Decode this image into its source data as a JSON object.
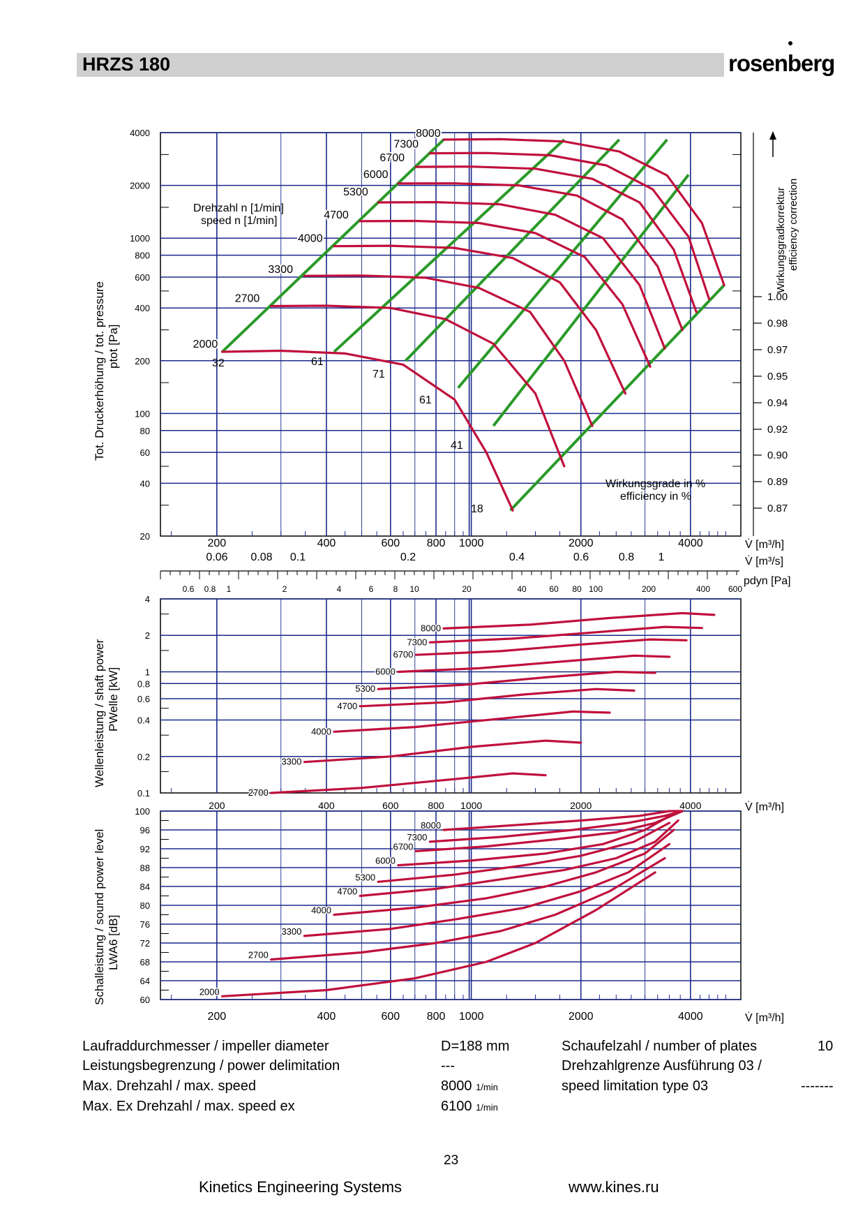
{
  "header": {
    "title": "HRZS 180",
    "brand": "rosenberg"
  },
  "colors": {
    "curve": "#c0103c",
    "efficiency": "#2a9a28",
    "grid": "#1a2a8a",
    "header_bar": "#cfcfcf"
  },
  "axes": {
    "flow_m3h_label": "V̇ [m³/h]",
    "flow_m3h_ticks": [
      "200",
      "400",
      "600",
      "800",
      "1000",
      "2000",
      "4000"
    ],
    "flow_m3s_label": "V̇ [m³/s]",
    "flow_m3s_ticks": [
      "0.06",
      "0.08",
      "0.1",
      "0.2",
      "0.4",
      "0.6",
      "0.8",
      "1"
    ],
    "pdyn_label": "pdyn [Pa]",
    "pdyn_ticks": [
      "0.6",
      "0.8",
      "1",
      "2",
      "4",
      "6",
      "8",
      "10",
      "20",
      "40",
      "60",
      "80",
      "100",
      "200",
      "400",
      "600"
    ],
    "pressure_label": "Tot. Druckerhöhung / tot. pressure",
    "pressure_unit": "ptot [Pa]",
    "pressure_ticks": [
      "4000",
      "2000",
      "1000",
      "800",
      "600",
      "400",
      "200",
      "100",
      "80",
      "60",
      "40",
      "20"
    ],
    "correction_label_de": "Wirkungsgradkorrektur",
    "correction_label_en": "efficiency correction",
    "correction_ticks": [
      "1.00",
      "0.98",
      "0.97",
      "0.95",
      "0.94",
      "0.92",
      "0.90",
      "0.89",
      "0.87"
    ],
    "power_label": "Wellenleistung / shaft power",
    "power_unit": "PWelle [kW]",
    "power_ticks": [
      "4",
      "2",
      "1",
      "0.8",
      "0.6",
      "0.4",
      "0.2",
      "0.1"
    ],
    "sound_label": "Schalleistung / sound power level",
    "sound_unit": "LWA6 [dB]",
    "sound_ticks": [
      "100",
      "96",
      "92",
      "88",
      "84",
      "80",
      "76",
      "72",
      "68",
      "64",
      "60"
    ]
  },
  "annotations": {
    "speed_de": "Drehzahl n [1/min]",
    "speed_en": "speed n [1/min]",
    "efficiency_de": "Wirkungsgrade in %",
    "efficiency_en": "efficiency in %"
  },
  "chart_data": [
    {
      "type": "line",
      "title": "",
      "xlabel": "V̇ [m³/h]",
      "ylabel": "ptot [Pa]",
      "xscale": "log",
      "yscale": "log",
      "xlim": [
        140,
        5500
      ],
      "ylim": [
        20,
        4000
      ],
      "grid": true,
      "series": [
        {
          "name": "2000",
          "x": [
            207,
            300,
            450,
            650,
            900,
            1100,
            1300
          ],
          "y": [
            225,
            228,
            220,
            190,
            120,
            60,
            28
          ]
        },
        {
          "name": "2700",
          "x": [
            282,
            400,
            600,
            850,
            1150,
            1500,
            1800
          ],
          "y": [
            410,
            412,
            400,
            345,
            250,
            130,
            50
          ]
        },
        {
          "name": "3300",
          "x": [
            348,
            500,
            750,
            1050,
            1450,
            1800,
            2150
          ],
          "y": [
            610,
            612,
            595,
            520,
            380,
            200,
            85
          ]
        },
        {
          "name": "4000",
          "x": [
            420,
            600,
            900,
            1300,
            1750,
            2200,
            2650
          ],
          "y": [
            900,
            905,
            880,
            770,
            560,
            300,
            130
          ]
        },
        {
          "name": "4700",
          "x": [
            495,
            700,
            1050,
            1500,
            2050,
            2600,
            3100
          ],
          "y": [
            1250,
            1255,
            1220,
            1070,
            780,
            420,
            185
          ]
        },
        {
          "name": "5300",
          "x": [
            555,
            800,
            1200,
            1700,
            2300,
            2900,
            3400
          ],
          "y": [
            1600,
            1605,
            1560,
            1360,
            1000,
            540,
            235
          ]
        },
        {
          "name": "6000",
          "x": [
            630,
            900,
            1350,
            1950,
            2600,
            3250,
            3800
          ],
          "y": [
            2050,
            2055,
            2000,
            1750,
            1280,
            690,
            300
          ]
        },
        {
          "name": "6700",
          "x": [
            705,
            1000,
            1500,
            2150,
            2900,
            3600,
            4150
          ],
          "y": [
            2550,
            2560,
            2490,
            2180,
            1600,
            860,
            380
          ]
        },
        {
          "name": "7300",
          "x": [
            770,
            1100,
            1650,
            2350,
            3150,
            3950,
            4500
          ],
          "y": [
            3050,
            3060,
            2970,
            2600,
            1900,
            1020,
            450
          ]
        },
        {
          "name": "8000",
          "x": [
            840,
            1200,
            1800,
            2550,
            3450,
            4300,
            4950
          ],
          "y": [
            3650,
            3670,
            3560,
            3120,
            2280,
            1220,
            540
          ]
        }
      ],
      "efficiency_lines": [
        {
          "label": "32",
          "from": [
            207,
            225
          ],
          "to": [
            840,
            3650
          ]
        },
        {
          "label": "61",
          "from": [
            420,
            225
          ],
          "to": [
            1800,
            3650
          ]
        },
        {
          "label": "71",
          "from": [
            660,
            200
          ],
          "to": [
            2550,
            3650
          ]
        },
        {
          "label": "61",
          "from": [
            920,
            140
          ],
          "to": [
            3450,
            3650
          ]
        },
        {
          "label": "41",
          "from": [
            1150,
            85
          ],
          "to": [
            3950,
            2300
          ]
        },
        {
          "label": "18",
          "from": [
            1280,
            28
          ],
          "to": [
            4950,
            540
          ]
        }
      ],
      "efficiency_correction": [
        1.0,
        0.98,
        0.97,
        0.95,
        0.94,
        0.92,
        0.9,
        0.89,
        0.87
      ]
    },
    {
      "type": "line",
      "title": "",
      "xlabel": "V̇ [m³/h]",
      "ylabel": "PWelle [kW]",
      "xscale": "log",
      "yscale": "log",
      "xlim": [
        140,
        5500
      ],
      "ylim": [
        0.1,
        4
      ],
      "grid": true,
      "series": [
        {
          "name": "2700",
          "x": [
            282,
            500,
            900,
            1300,
            1600
          ],
          "y": [
            0.1,
            0.11,
            0.13,
            0.145,
            0.14
          ]
        },
        {
          "name": "3300",
          "x": [
            348,
            600,
            1000,
            1600,
            2000
          ],
          "y": [
            0.18,
            0.2,
            0.24,
            0.27,
            0.26
          ]
        },
        {
          "name": "4000",
          "x": [
            420,
            700,
            1200,
            1900,
            2400
          ],
          "y": [
            0.32,
            0.35,
            0.41,
            0.47,
            0.46
          ]
        },
        {
          "name": "4700",
          "x": [
            495,
            850,
            1400,
            2200,
            2800
          ],
          "y": [
            0.52,
            0.56,
            0.65,
            0.72,
            0.7
          ]
        },
        {
          "name": "5300",
          "x": [
            555,
            950,
            1600,
            2500,
            3200
          ],
          "y": [
            0.72,
            0.78,
            0.9,
            1.0,
            0.98
          ]
        },
        {
          "name": "6000",
          "x": [
            630,
            1050,
            1800,
            2800,
            3500
          ],
          "y": [
            1.0,
            1.07,
            1.22,
            1.36,
            1.33
          ]
        },
        {
          "name": "6700",
          "x": [
            705,
            1200,
            2000,
            3100,
            3900
          ],
          "y": [
            1.38,
            1.48,
            1.68,
            1.85,
            1.82
          ]
        },
        {
          "name": "7300",
          "x": [
            770,
            1300,
            2200,
            3400,
            4300
          ],
          "y": [
            1.75,
            1.88,
            2.12,
            2.35,
            2.3
          ]
        },
        {
          "name": "8000",
          "x": [
            840,
            1450,
            2400,
            3800,
            4650
          ],
          "y": [
            2.28,
            2.45,
            2.78,
            3.05,
            2.95
          ]
        }
      ]
    },
    {
      "type": "line",
      "title": "",
      "xlabel": "V̇ [m³/h]",
      "ylabel": "LWA6 [dB]",
      "xscale": "log",
      "yscale": "linear",
      "xlim": [
        140,
        5500
      ],
      "ylim": [
        60,
        100
      ],
      "grid": true,
      "series": [
        {
          "name": "2000",
          "x": [
            207,
            400,
            700,
            1100,
            1500,
            2200,
            3200
          ],
          "y": [
            60.7,
            62,
            64.5,
            68,
            72,
            79,
            87
          ]
        },
        {
          "name": "2700",
          "x": [
            282,
            500,
            800,
            1200,
            1700,
            2400,
            3400
          ],
          "y": [
            68.5,
            70,
            72,
            74.5,
            78,
            83,
            90
          ]
        },
        {
          "name": "3300",
          "x": [
            348,
            600,
            900,
            1400,
            2000,
            2700,
            3500
          ],
          "y": [
            73.5,
            75,
            77,
            79.5,
            83,
            87,
            93
          ]
        },
        {
          "name": "4000",
          "x": [
            420,
            700,
            1100,
            1600,
            2200,
            3000,
            3600
          ],
          "y": [
            78,
            79.5,
            81.5,
            84,
            87,
            91,
            96
          ]
        },
        {
          "name": "4700",
          "x": [
            495,
            800,
            1200,
            1800,
            2500,
            3200,
            3700
          ],
          "y": [
            82,
            83.5,
            85.5,
            87.5,
            90,
            93.5,
            98
          ]
        },
        {
          "name": "5300",
          "x": [
            555,
            900,
            1400,
            2000,
            2800,
            3500
          ],
          "y": [
            85,
            86.5,
            88.5,
            90.5,
            93.5,
            97.5
          ]
        },
        {
          "name": "6000",
          "x": [
            630,
            1000,
            1600,
            2300,
            3000,
            3700
          ],
          "y": [
            88.5,
            89.5,
            91,
            93,
            96,
            100
          ]
        },
        {
          "name": "6700",
          "x": [
            705,
            1100,
            1700,
            2500,
            3200,
            3800
          ],
          "y": [
            91.5,
            92.5,
            94,
            95.5,
            97.5,
            100
          ]
        },
        {
          "name": "7300",
          "x": [
            770,
            1200,
            1900,
            2700,
            3400,
            3800
          ],
          "y": [
            93.5,
            94.5,
            96,
            97.5,
            99,
            100
          ]
        },
        {
          "name": "8000",
          "x": [
            840,
            1300,
            2000,
            2900,
            3500,
            3800
          ],
          "y": [
            96,
            97,
            98,
            99,
            100,
            100
          ]
        }
      ]
    }
  ],
  "specs": {
    "impeller_label": "Laufraddurchmesser / impeller diameter",
    "impeller_value": "D=188 mm",
    "power_limit_label": "Leistungsbegrenzung / power delimitation",
    "power_limit_value": "---",
    "max_speed_label": "Max. Drehzahl / max. speed",
    "max_speed_value": "8000",
    "max_speed_ex_label": "Max. Ex Drehzahl / max. speed ex",
    "max_speed_ex_value": "6100",
    "speed_unit": "1/min",
    "plates_label": "Schaufelzahl / number of plates",
    "plates_value": "10",
    "speed_limit_label_1": "Drehzahlgrenze Ausführung 03 /",
    "speed_limit_label_2": "speed limitation type 03",
    "speed_limit_value": "-------"
  },
  "footer": {
    "page": "23",
    "company": "Kinetics Engineering Systems",
    "url": "www.kines.ru"
  }
}
